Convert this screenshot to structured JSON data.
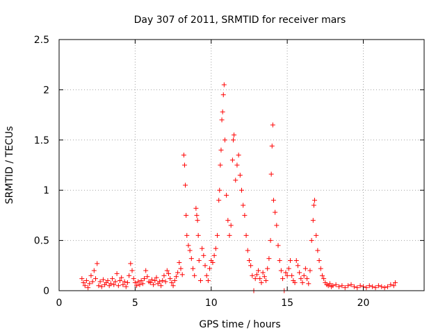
{
  "chart_data": {
    "type": "scatter",
    "title": "Day 307 of 2011, SRMTID for receiver mars",
    "xlabel": "GPS time / hours",
    "ylabel": "SRMTID / TECUs",
    "xlim": [
      0,
      24
    ],
    "ylim": [
      0,
      2.5
    ],
    "xticks": [
      0,
      5,
      10,
      15,
      20
    ],
    "xtick_labels": [
      "0",
      "5",
      "10",
      "15",
      "20"
    ],
    "yticks": [
      0,
      0.5,
      1,
      1.5,
      2,
      2.5
    ],
    "ytick_labels": [
      "0",
      "0.5",
      "1",
      "1.5",
      "2",
      "2.5"
    ],
    "grid": true,
    "marker": "+",
    "series": [
      {
        "name": "SRMTID",
        "color": "#ff0000",
        "points": [
          [
            1.5,
            0.12
          ],
          [
            1.6,
            0.08
          ],
          [
            1.7,
            0.05
          ],
          [
            1.8,
            0.1
          ],
          [
            1.9,
            0.03
          ],
          [
            2.0,
            0.07
          ],
          [
            2.1,
            0.15
          ],
          [
            2.2,
            0.09
          ],
          [
            2.3,
            0.2
          ],
          [
            2.4,
            0.12
          ],
          [
            2.5,
            0.27
          ],
          [
            2.6,
            0.05
          ],
          [
            2.7,
            0.09
          ],
          [
            2.8,
            0.04
          ],
          [
            2.9,
            0.11
          ],
          [
            3.0,
            0.06
          ],
          [
            3.1,
            0.08
          ],
          [
            3.2,
            0.1
          ],
          [
            3.3,
            0.05
          ],
          [
            3.4,
            0.07
          ],
          [
            3.5,
            0.12
          ],
          [
            3.6,
            0.06
          ],
          [
            3.7,
            0.09
          ],
          [
            3.8,
            0.17
          ],
          [
            3.9,
            0.05
          ],
          [
            4.0,
            0.1
          ],
          [
            4.1,
            0.13
          ],
          [
            4.2,
            0.06
          ],
          [
            4.3,
            0.09
          ],
          [
            4.4,
            0.04
          ],
          [
            4.5,
            0.08
          ],
          [
            4.6,
            0.15
          ],
          [
            4.7,
            0.27
          ],
          [
            4.8,
            0.2
          ],
          [
            4.9,
            0.12
          ],
          [
            5.0,
            0.08
          ],
          [
            5.1,
            0.05
          ],
          [
            5.2,
            0.09
          ],
          [
            5.3,
            0.06
          ],
          [
            5.4,
            0.1
          ],
          [
            5.5,
            0.07
          ],
          [
            5.6,
            0.12
          ],
          [
            5.7,
            0.2
          ],
          [
            5.8,
            0.14
          ],
          [
            5.9,
            0.09
          ],
          [
            6.0,
            0.08
          ],
          [
            6.1,
            0.11
          ],
          [
            6.2,
            0.06
          ],
          [
            6.3,
            0.1
          ],
          [
            6.4,
            0.13
          ],
          [
            6.5,
            0.07
          ],
          [
            6.6,
            0.09
          ],
          [
            6.7,
            0.05
          ],
          [
            6.8,
            0.1
          ],
          [
            6.9,
            0.15
          ],
          [
            7.0,
            0.09
          ],
          [
            7.1,
            0.2
          ],
          [
            7.2,
            0.17
          ],
          [
            7.3,
            0.12
          ],
          [
            7.4,
            0.08
          ],
          [
            7.5,
            0.05
          ],
          [
            7.6,
            0.1
          ],
          [
            7.7,
            0.14
          ],
          [
            7.8,
            0.18
          ],
          [
            7.9,
            0.28
          ],
          [
            8.0,
            0.22
          ],
          [
            8.1,
            0.16
          ],
          [
            8.2,
            1.35
          ],
          [
            8.25,
            1.25
          ],
          [
            8.3,
            1.05
          ],
          [
            8.35,
            0.75
          ],
          [
            8.4,
            0.55
          ],
          [
            8.5,
            0.45
          ],
          [
            8.6,
            0.4
          ],
          [
            8.7,
            0.32
          ],
          [
            8.8,
            0.22
          ],
          [
            8.9,
            0.15
          ],
          [
            9.0,
            0.82
          ],
          [
            9.05,
            0.75
          ],
          [
            9.1,
            0.7
          ],
          [
            9.15,
            0.55
          ],
          [
            9.2,
            0.3
          ],
          [
            9.3,
            0.1
          ],
          [
            9.4,
            0.42
          ],
          [
            9.5,
            0.35
          ],
          [
            9.6,
            0.25
          ],
          [
            9.7,
            0.15
          ],
          [
            9.8,
            0.1
          ],
          [
            9.9,
            0.22
          ],
          [
            10.0,
            0.3
          ],
          [
            10.1,
            0.28
          ],
          [
            10.2,
            0.35
          ],
          [
            10.3,
            0.42
          ],
          [
            10.4,
            0.55
          ],
          [
            10.5,
            0.9
          ],
          [
            10.55,
            1.0
          ],
          [
            10.6,
            1.25
          ],
          [
            10.65,
            1.4
          ],
          [
            10.7,
            1.7
          ],
          [
            10.75,
            1.78
          ],
          [
            10.8,
            1.95
          ],
          [
            10.85,
            2.05
          ],
          [
            10.9,
            1.5
          ],
          [
            11.0,
            0.95
          ],
          [
            11.1,
            0.7
          ],
          [
            11.2,
            0.55
          ],
          [
            11.3,
            0.65
          ],
          [
            11.4,
            1.3
          ],
          [
            11.45,
            1.5
          ],
          [
            11.5,
            1.55
          ],
          [
            11.6,
            1.1
          ],
          [
            11.7,
            1.25
          ],
          [
            11.8,
            1.35
          ],
          [
            11.9,
            1.15
          ],
          [
            12.0,
            1.0
          ],
          [
            12.1,
            0.85
          ],
          [
            12.2,
            0.75
          ],
          [
            12.3,
            0.55
          ],
          [
            12.4,
            0.4
          ],
          [
            12.5,
            0.3
          ],
          [
            12.6,
            0.25
          ],
          [
            12.7,
            0.15
          ],
          [
            12.8,
            0.0
          ],
          [
            12.9,
            0.12
          ],
          [
            13.0,
            0.16
          ],
          [
            13.1,
            0.2
          ],
          [
            13.2,
            0.12
          ],
          [
            13.3,
            0.08
          ],
          [
            13.4,
            0.18
          ],
          [
            13.5,
            0.14
          ],
          [
            13.6,
            0.1
          ],
          [
            13.7,
            0.22
          ],
          [
            13.8,
            0.32
          ],
          [
            13.9,
            0.5
          ],
          [
            13.95,
            1.16
          ],
          [
            14.0,
            1.44
          ],
          [
            14.05,
            1.65
          ],
          [
            14.1,
            0.9
          ],
          [
            14.2,
            0.78
          ],
          [
            14.3,
            0.65
          ],
          [
            14.4,
            0.45
          ],
          [
            14.5,
            0.3
          ],
          [
            14.6,
            0.2
          ],
          [
            14.7,
            0.12
          ],
          [
            14.8,
            0.0
          ],
          [
            14.9,
            0.18
          ],
          [
            15.0,
            0.15
          ],
          [
            15.1,
            0.22
          ],
          [
            15.2,
            0.3
          ],
          [
            15.3,
            0.15
          ],
          [
            15.4,
            0.1
          ],
          [
            15.5,
            0.08
          ],
          [
            15.6,
            0.3
          ],
          [
            15.7,
            0.25
          ],
          [
            15.8,
            0.18
          ],
          [
            15.9,
            0.12
          ],
          [
            16.0,
            0.08
          ],
          [
            16.1,
            0.15
          ],
          [
            16.2,
            0.22
          ],
          [
            16.3,
            0.12
          ],
          [
            16.4,
            0.07
          ],
          [
            16.5,
            0.2
          ],
          [
            16.6,
            0.5
          ],
          [
            16.7,
            0.7
          ],
          [
            16.75,
            0.85
          ],
          [
            16.8,
            0.9
          ],
          [
            16.9,
            0.55
          ],
          [
            17.0,
            0.4
          ],
          [
            17.1,
            0.3
          ],
          [
            17.2,
            0.22
          ],
          [
            17.3,
            0.15
          ],
          [
            17.4,
            0.12
          ],
          [
            17.5,
            0.08
          ],
          [
            17.6,
            0.06
          ],
          [
            17.7,
            0.05
          ],
          [
            17.8,
            0.07
          ],
          [
            17.9,
            0.04
          ],
          [
            18.0,
            0.05
          ],
          [
            18.2,
            0.06
          ],
          [
            18.4,
            0.04
          ],
          [
            18.6,
            0.05
          ],
          [
            18.8,
            0.03
          ],
          [
            19.0,
            0.05
          ],
          [
            19.2,
            0.06
          ],
          [
            19.4,
            0.04
          ],
          [
            19.6,
            0.03
          ],
          [
            19.8,
            0.05
          ],
          [
            20.0,
            0.04
          ],
          [
            20.2,
            0.03
          ],
          [
            20.4,
            0.05
          ],
          [
            20.6,
            0.04
          ],
          [
            20.8,
            0.03
          ],
          [
            21.0,
            0.05
          ],
          [
            21.2,
            0.04
          ],
          [
            21.4,
            0.03
          ],
          [
            21.6,
            0.04
          ],
          [
            21.8,
            0.06
          ],
          [
            22.0,
            0.05
          ],
          [
            22.1,
            0.08
          ]
        ]
      }
    ]
  }
}
